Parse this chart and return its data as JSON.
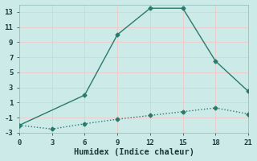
{
  "xlabel": "Humidex (Indice chaleur)",
  "bg_color": "#cceae8",
  "grid_color": "#f0c8c8",
  "line1_x": [
    0,
    6,
    9,
    12,
    15,
    18,
    21
  ],
  "line1_y": [
    -2,
    2,
    10,
    13.5,
    13.5,
    6.5,
    2.5
  ],
  "line2_x": [
    0,
    3,
    6,
    9,
    12,
    15,
    18,
    21
  ],
  "line2_y": [
    -2,
    -2.5,
    -1.8,
    -1.2,
    -0.7,
    -0.2,
    0.3,
    -0.5
  ],
  "line_color": "#2a7a6a",
  "marker": "D",
  "marker_size": 2.5,
  "xlim": [
    0,
    21
  ],
  "ylim": [
    -3,
    14
  ],
  "xticks": [
    0,
    3,
    6,
    9,
    12,
    15,
    18,
    21
  ],
  "yticks": [
    -3,
    -1,
    1,
    3,
    5,
    7,
    9,
    11,
    13
  ],
  "tick_fontsize": 6.5,
  "xlabel_fontsize": 7.5,
  "linewidth": 1.0
}
